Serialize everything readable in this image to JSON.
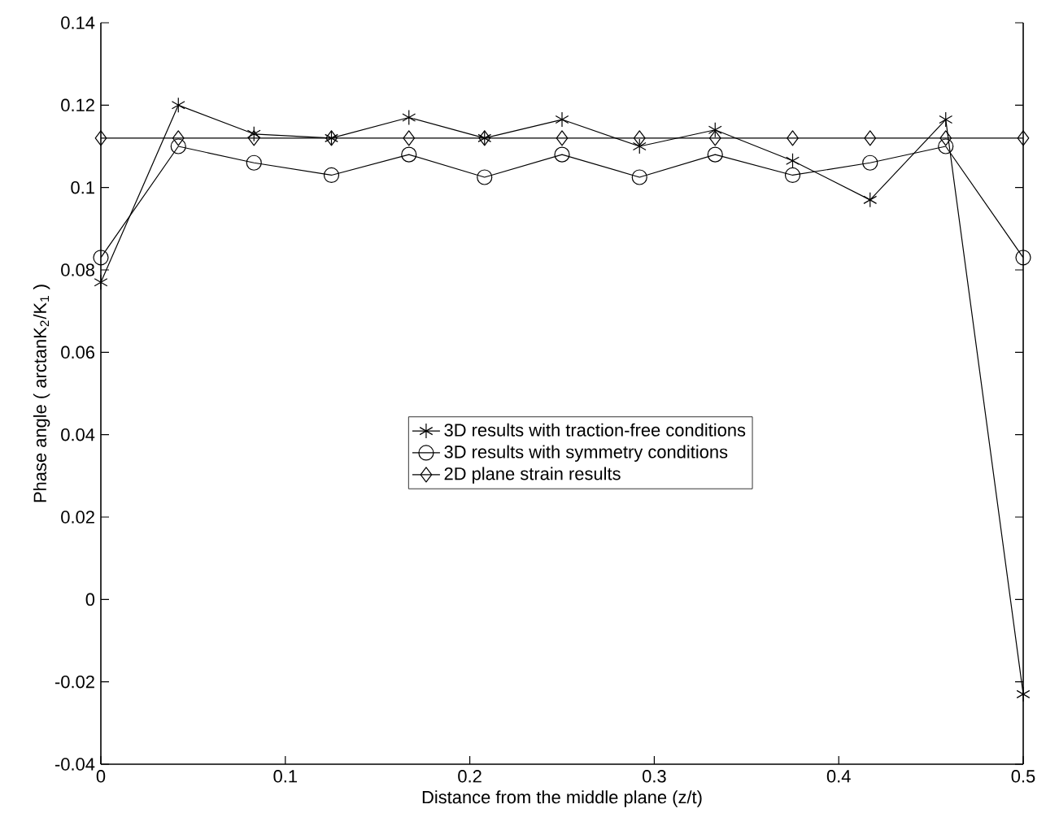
{
  "chart_data": {
    "type": "line",
    "xlabel": "Distance from the middle plane (z/t)",
    "ylabel": "Phase angle ( arctanK$_{2}$/K$_{1}$ )",
    "x": [
      0,
      0.042,
      0.083,
      0.125,
      0.167,
      0.208,
      0.25,
      0.292,
      0.333,
      0.375,
      0.417,
      0.458,
      0.5
    ],
    "series": [
      {
        "name": "3D results with traction-free conditions",
        "color": "#000000",
        "marker": "cross",
        "values": [
          0.077,
          0.12,
          0.113,
          0.112,
          0.117,
          0.112,
          0.1165,
          0.11,
          0.114,
          0.1065,
          0.097,
          0.1165,
          -0.023
        ]
      },
      {
        "name": "3D results with symmetry conditions",
        "color": "#000000",
        "marker": "circle",
        "values": [
          0.083,
          0.11,
          0.106,
          0.103,
          0.108,
          0.1025,
          0.108,
          0.1025,
          0.108,
          0.103,
          0.106,
          0.11,
          0.083
        ]
      },
      {
        "name": "2D plane strain results",
        "color": "#000000",
        "marker": "diamond",
        "values": [
          0.112,
          0.112,
          0.112,
          0.112,
          0.112,
          0.112,
          0.112,
          0.112,
          0.112,
          0.112,
          0.112,
          0.112,
          0.112
        ]
      }
    ],
    "xlim": [
      0,
      0.5
    ],
    "xticks": [
      0,
      0.1,
      0.2,
      0.3,
      0.4,
      0.5
    ],
    "ylim": [
      -0.04,
      0.14
    ],
    "yticks": [
      -0.04,
      -0.02,
      0,
      0.02,
      0.04,
      0.06,
      0.08,
      0.1,
      0.12,
      0.14
    ],
    "grid": false,
    "legend": "center",
    "line_style": "solid"
  }
}
